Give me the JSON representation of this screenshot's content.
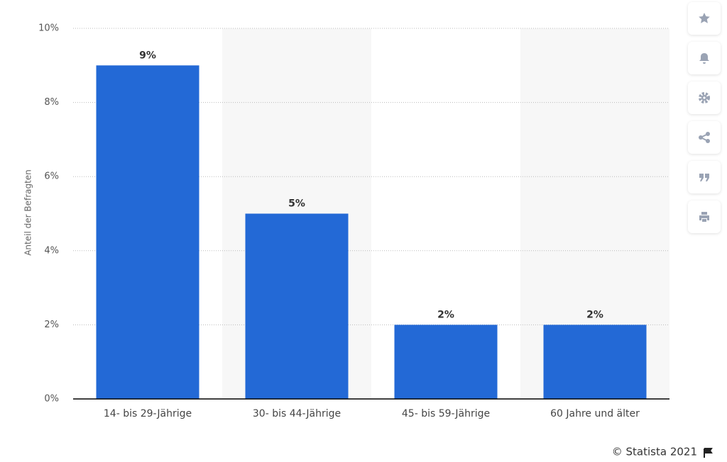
{
  "chart_data": {
    "type": "bar",
    "y_label": "Anteil der Befragten",
    "categories": [
      "14- bis 29-Jährige",
      "30- bis 44-Jährige",
      "45- bis 59-Jährige",
      "60 Jahre und älter"
    ],
    "values": [
      9,
      5,
      2,
      2
    ],
    "value_labels": [
      "9%",
      "5%",
      "2%",
      "2%"
    ],
    "color": "#2369d6",
    "ylim": [
      0,
      10
    ],
    "yticks": [
      {
        "value": 0,
        "label": "0%"
      },
      {
        "value": 2,
        "label": "2%"
      },
      {
        "value": 4,
        "label": "4%"
      },
      {
        "value": 6,
        "label": "6%"
      },
      {
        "value": 8,
        "label": "8%"
      },
      {
        "value": 10,
        "label": "10%"
      }
    ],
    "grid": true,
    "source": "© Statista 2021"
  }
}
